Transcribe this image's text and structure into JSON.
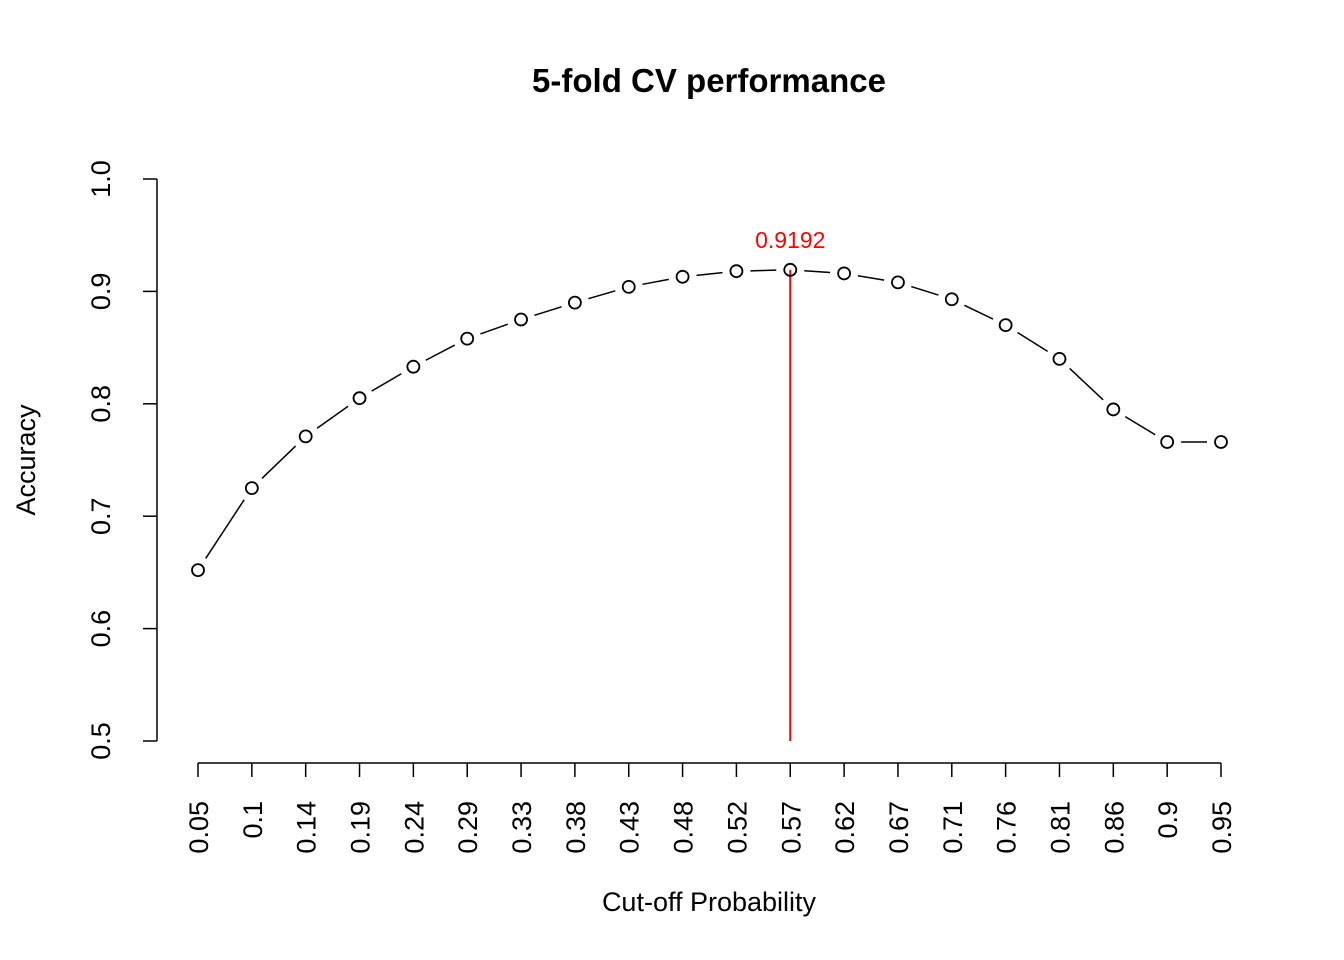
{
  "chart_data": {
    "type": "line",
    "title": "5-fold CV performance",
    "xlabel": "Cut-off Probability",
    "ylabel": "Accuracy",
    "ylim": [
      0.5,
      1.0
    ],
    "y_ticks": [
      "0.5",
      "0.6",
      "0.7",
      "0.8",
      "0.9",
      "1.0"
    ],
    "categories": [
      "0.05",
      "0.1",
      "0.14",
      "0.19",
      "0.24",
      "0.29",
      "0.33",
      "0.38",
      "0.43",
      "0.48",
      "0.52",
      "0.57",
      "0.62",
      "0.67",
      "0.71",
      "0.76",
      "0.81",
      "0.86",
      "0.9",
      "0.95"
    ],
    "values": [
      0.652,
      0.725,
      0.771,
      0.805,
      0.833,
      0.858,
      0.875,
      0.89,
      0.904,
      0.913,
      0.918,
      0.9192,
      0.916,
      0.908,
      0.893,
      0.87,
      0.84,
      0.795,
      0.766,
      0.766
    ],
    "grid": false,
    "marker": "open-circle",
    "line_color": "#000000",
    "highlight": {
      "category": "0.57",
      "value": 0.9192,
      "label": "0.9192",
      "color": "#ff0000"
    }
  }
}
